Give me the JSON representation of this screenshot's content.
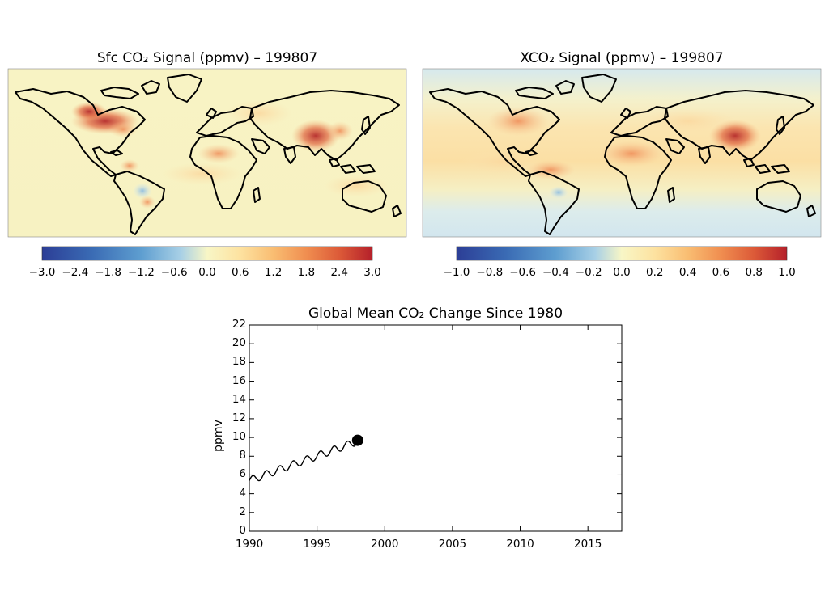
{
  "chart_data": [
    {
      "type": "heatmap",
      "title": "Sfc CO₂ Signal (ppmv) – 199807",
      "colorbar": {
        "ticks": [
          "−3.0",
          "−2.4",
          "−1.8",
          "−1.2",
          "−0.6",
          "0.0",
          "0.6",
          "1.2",
          "1.8",
          "2.4",
          "3.0"
        ],
        "range": [
          -3.0,
          3.0
        ]
      },
      "features": "World map of July 1998 surface CO2 signal; strongest positive anomalies over eastern North America, eastern China and parts of Africa/South America; weak negative anomaly over southern Brazil."
    },
    {
      "type": "heatmap",
      "title": "XCO₂ Signal (ppmv) – 199807",
      "colorbar": {
        "ticks": [
          "−1.0",
          "−0.8",
          "−0.6",
          "−0.4",
          "−0.2",
          "0.0",
          "0.2",
          "0.4",
          "0.6",
          "0.8",
          "1.0"
        ],
        "range": [
          -1.0,
          1.0
        ]
      },
      "features": "Column-averaged CO2 signal; broad positive band across northern tropics/midlatitudes peaking over China and eastern USA; slightly negative values near poles."
    },
    {
      "type": "line",
      "title": "Global Mean CO₂ Change Since 1980",
      "ylabel": "ppmv",
      "xlim": [
        1990,
        2017.5
      ],
      "ylim": [
        0,
        22
      ],
      "xticks": [
        1990,
        1995,
        2000,
        2005,
        2010,
        2015
      ],
      "yticks": [
        0,
        2,
        4,
        6,
        8,
        10,
        12,
        14,
        16,
        18,
        20,
        22
      ],
      "series": [
        {
          "start": 1990.0,
          "end": 1998.0,
          "start_value": 5.4,
          "end_value": 9.6,
          "seasonal_amplitude": 0.4,
          "endpoint_marker": {
            "x": 1998.0,
            "y": 9.7
          }
        }
      ]
    }
  ],
  "colors": {
    "colormap": [
      "#2c3e96",
      "#3a6bb4",
      "#5e9ed0",
      "#9cc9e4",
      "#d6ebf2",
      "#f8f6c6",
      "#fde2a0",
      "#f9bd72",
      "#f08e50",
      "#dc5a38",
      "#b5202a"
    ],
    "coastline": "#000000",
    "line": "#000000"
  }
}
